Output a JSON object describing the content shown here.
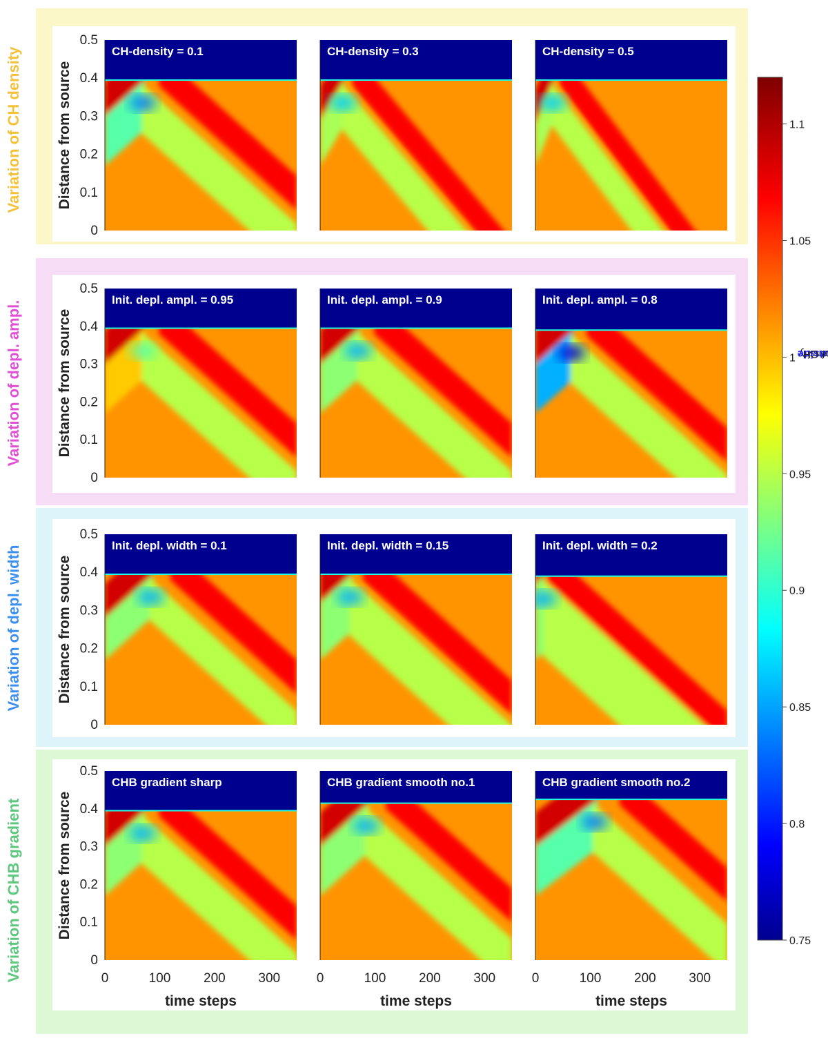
{
  "colors": {
    "row_bands": [
      "#fbf7c9",
      "#f7dcf6",
      "#def4fb",
      "#ddf8d4"
    ],
    "row_label_colors": [
      "#f4c13a",
      "#e24fd6",
      "#3b8ff0",
      "#5cc77d"
    ],
    "ch_region": "#00008f",
    "background_density": "#ffc600"
  },
  "row_labels": [
    "Variation of CH density",
    "Variation of depl. ampl.",
    "Variation of depl. width",
    "Variation of CHB gradient"
  ],
  "panel_titles": [
    [
      "CH-density = 0.1",
      "CH-density = 0.3",
      "CH-density = 0.5"
    ],
    [
      "Init. depl. ampl. = 0.95",
      "Init. depl. ampl. = 0.9",
      "Init. depl. ampl. = 0.8"
    ],
    [
      "Init. depl. width = 0.1",
      "Init. depl. width = 0.15",
      "Init. depl. width = 0.2"
    ],
    [
      "CHB gradient sharp",
      "CHB gradient smooth no.1",
      "CHB gradient smooth no.2"
    ]
  ],
  "colorbar": {
    "label_prefix": "Density ",
    "label_highlight": "outside",
    "label_suffix": " of CH",
    "range": [
      0.75,
      1.12
    ],
    "ticks": [
      "0.75",
      "0.8",
      "0.85",
      "0.9",
      "0.95",
      "1",
      "1.05",
      "1.1"
    ],
    "colormap": "jet"
  },
  "chart_data": {
    "type": "heatmap",
    "layout": "4x3 small multiples",
    "xlabel": "time steps",
    "ylabel": "Distance from source",
    "xlim": [
      0,
      350
    ],
    "ylim": [
      0,
      0.5
    ],
    "xticks": [
      "0",
      "100",
      "200",
      "300"
    ],
    "yticks": [
      "0",
      "0.1",
      "0.2",
      "0.3",
      "0.4",
      "0.5"
    ],
    "value_label": "Density outside of CH",
    "panels": [
      {
        "title": "CH-density = 0.1",
        "boundary": 0.395,
        "incident_slope": 0.0013,
        "refl_slope": 0.0013,
        "depletion_min": 0.84,
        "depletion_width": 0.13
      },
      {
        "title": "CH-density = 0.3",
        "boundary": 0.395,
        "incident_slope": 0.0024,
        "refl_slope": 0.0017,
        "depletion_min": 0.87,
        "depletion_width": 0.12
      },
      {
        "title": "CH-density = 0.5",
        "boundary": 0.395,
        "incident_slope": 0.0035,
        "refl_slope": 0.0019,
        "depletion_min": 0.87,
        "depletion_width": 0.11
      },
      {
        "title": "Init. depl. ampl. = 0.95",
        "boundary": 0.395,
        "incident_slope": 0.0013,
        "refl_slope": 0.0013,
        "depletion_min": 0.92,
        "depletion_width": 0.13
      },
      {
        "title": "Init. depl. ampl. = 0.9",
        "boundary": 0.395,
        "incident_slope": 0.0013,
        "refl_slope": 0.0013,
        "depletion_min": 0.86,
        "depletion_width": 0.13
      },
      {
        "title": "Init. depl. ampl. = 0.8",
        "boundary": 0.39,
        "incident_slope": 0.0013,
        "refl_slope": 0.0013,
        "depletion_min": 0.78,
        "depletion_width": 0.13
      },
      {
        "title": "Init. depl. width = 0.1",
        "boundary": 0.395,
        "incident_slope": 0.0013,
        "refl_slope": 0.0013,
        "depletion_min": 0.86,
        "depletion_width": 0.11
      },
      {
        "title": "Init. depl. width = 0.15",
        "boundary": 0.395,
        "incident_slope": 0.0013,
        "refl_slope": 0.0013,
        "depletion_min": 0.86,
        "depletion_width": 0.15
      },
      {
        "title": "Init. depl. width = 0.2",
        "boundary": 0.39,
        "incident_slope": 0.0013,
        "refl_slope": 0.0013,
        "depletion_min": 0.86,
        "depletion_width": 0.2
      },
      {
        "title": "CHB gradient sharp",
        "boundary": 0.395,
        "incident_slope": 0.0013,
        "refl_slope": 0.0013,
        "depletion_min": 0.86,
        "depletion_width": 0.13
      },
      {
        "title": "CHB gradient smooth no.1",
        "boundary": 0.415,
        "incident_slope": 0.0013,
        "refl_slope": 0.0013,
        "depletion_min": 0.86,
        "depletion_width": 0.13
      },
      {
        "title": "CHB gradient smooth no.2",
        "boundary": 0.425,
        "incident_slope": 0.0011,
        "refl_slope": 0.0013,
        "depletion_min": 0.84,
        "depletion_width": 0.13
      }
    ]
  }
}
